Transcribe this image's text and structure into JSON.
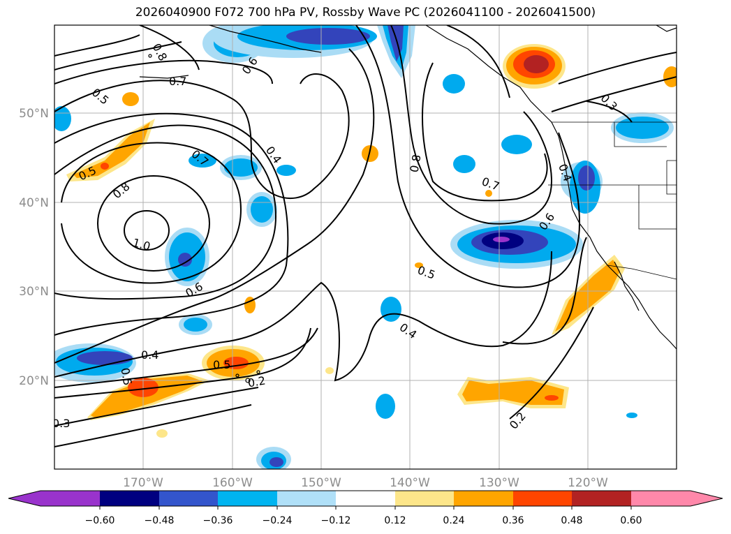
{
  "title": "2026040900 F072 700 hPa PV, Rossby Wave PC (2026041100 - 2026041500)",
  "map": {
    "lat_labels": [
      "50°N",
      "40°N",
      "30°N",
      "20°N"
    ],
    "lon_labels": [
      "170°W",
      "160°W",
      "150°W",
      "140°W",
      "130°W",
      "120°W"
    ],
    "contour_labels": [
      "0.8",
      "0.7",
      "0.5",
      "0.6",
      "0.4",
      "0.3",
      "0.5",
      "0.8",
      "0.7",
      "1.0",
      "0.6",
      "0.8",
      "0.7",
      "0.6",
      "0.4",
      "0.5",
      "0.4",
      "0.4",
      "0.5",
      "0.5",
      "0.2",
      "0.3",
      "0.2"
    ]
  },
  "colorbar": {
    "ticks": [
      "−0.60",
      "−0.48",
      "−0.36",
      "−0.24",
      "−0.12",
      "0.12",
      "0.24",
      "0.36",
      "0.48",
      "0.60"
    ],
    "colors": [
      "#9933cc",
      "#000080",
      "#3355cc",
      "#00b4f0",
      "#b0e0f8",
      "#ffffff",
      "#fde68a",
      "#ffa500",
      "#ff4500",
      "#b22222",
      "#ff88aa"
    ]
  },
  "colors": {
    "neg_strong": "#3344bb",
    "neg_mid": "#00aaee",
    "neg_weak": "#aadcf5",
    "pos_weak": "#fde68a",
    "pos_mid": "#ffa500",
    "pos_strong": "#ff4500",
    "pos_max": "#b22222"
  }
}
